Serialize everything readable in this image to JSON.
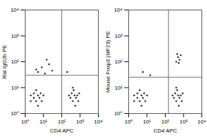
{
  "chart_data": [
    {
      "type": "scatter",
      "x_label": "CD4 APC",
      "y_label": "Rat IgG2b PE",
      "log": true,
      "color": "#333333",
      "marker": "dot",
      "xlim": [
        1,
        10000
      ],
      "ylim": [
        1,
        10000
      ],
      "xticks": [
        {
          "value": 1,
          "label": "10⁰"
        },
        {
          "value": 10,
          "label": "10¹"
        },
        {
          "value": 100,
          "label": "10²"
        },
        {
          "value": 1000,
          "label": "10³"
        },
        {
          "value": 10000,
          "label": "10⁴"
        }
      ],
      "yticks": [
        {
          "value": 1,
          "label": "10⁰"
        },
        {
          "value": 10,
          "label": "10¹"
        },
        {
          "value": 100,
          "label": "10²"
        },
        {
          "value": 1000,
          "label": "10³"
        },
        {
          "value": 10000,
          "label": "10⁴"
        }
      ],
      "gate": {
        "x": 100,
        "y": 30
      },
      "x": [
        2,
        3,
        4,
        5,
        3,
        6,
        8,
        4,
        2,
        7,
        5,
        10,
        300,
        400,
        500,
        600,
        350,
        450,
        700,
        800,
        550,
        250,
        900,
        400,
        5,
        8,
        12,
        20,
        4,
        30,
        200,
        15
      ],
      "values": [
        3,
        4,
        3,
        5,
        6,
        4,
        3,
        8,
        5,
        6,
        2,
        5,
        4,
        3,
        5,
        4,
        6,
        8,
        5,
        3,
        2,
        5,
        6,
        10,
        40,
        60,
        35,
        80,
        50,
        45,
        40,
        120
      ]
    },
    {
      "type": "scatter",
      "x_label": "CD4 APC",
      "y_label": "Mouse Foxp3 (MF23) PE",
      "log": true,
      "color": "#333333",
      "marker": "dot",
      "xlim": [
        1,
        10000
      ],
      "ylim": [
        1,
        10000
      ],
      "xticks": [
        {
          "value": 1,
          "label": "10⁰"
        },
        {
          "value": 10,
          "label": "10¹"
        },
        {
          "value": 100,
          "label": "10²"
        },
        {
          "value": 1000,
          "label": "10³"
        },
        {
          "value": 10000,
          "label": "10⁴"
        }
      ],
      "yticks": [
        {
          "value": 1,
          "label": "10⁰"
        },
        {
          "value": 10,
          "label": "10¹"
        },
        {
          "value": 100,
          "label": "10²"
        },
        {
          "value": 1000,
          "label": "10³"
        },
        {
          "value": 10000,
          "label": "10⁴"
        }
      ],
      "gate": {
        "x": 150,
        "y": 25
      },
      "x": [
        2,
        3,
        4,
        5,
        3,
        6,
        8,
        4,
        2,
        7,
        5,
        10,
        300,
        400,
        500,
        600,
        350,
        450,
        700,
        800,
        550,
        250,
        900,
        400,
        400,
        500,
        600,
        450,
        550,
        700,
        6,
        15
      ],
      "values": [
        3,
        4,
        3,
        5,
        6,
        4,
        3,
        8,
        5,
        6,
        2,
        5,
        4,
        3,
        5,
        4,
        6,
        8,
        5,
        3,
        2,
        5,
        6,
        10,
        100,
        150,
        120,
        200,
        90,
        180,
        40,
        30
      ]
    }
  ]
}
